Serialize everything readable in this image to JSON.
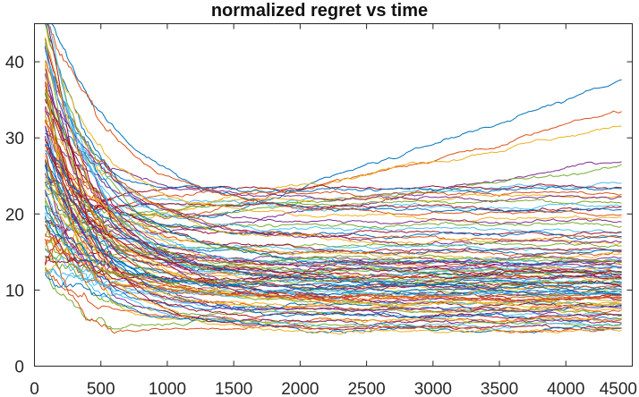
{
  "chart_data": {
    "type": "line",
    "title": "normalized regret vs time",
    "xlabel": "",
    "ylabel": "",
    "xlim": [
      0,
      4500
    ],
    "ylim": [
      0,
      45
    ],
    "x_ticks": [
      0,
      500,
      1000,
      1500,
      2000,
      2500,
      3000,
      3500,
      4000,
      4500
    ],
    "y_ticks": [
      0,
      10,
      20,
      30,
      40
    ],
    "grid": false,
    "legend": "none",
    "x_range_data": [
      80,
      4420
    ],
    "series_count": 100,
    "series_final_values": [
      37.6,
      33.3,
      31.6,
      27.2,
      26.0,
      24.3,
      23.6,
      23.2,
      22.7,
      22.4,
      22.1,
      21.7,
      21.2,
      20.7,
      20.4,
      20.0,
      19.5,
      19.0,
      18.5,
      18.0,
      17.6,
      17.2,
      16.8,
      16.5,
      16.2,
      15.9,
      15.6,
      15.3,
      15.0,
      14.7,
      14.4,
      14.2,
      14.0,
      13.8,
      13.6,
      13.4,
      13.2,
      13.0,
      12.8,
      12.6,
      12.4,
      12.2,
      12.0,
      11.8,
      11.6,
      11.4,
      11.2,
      11.0,
      10.8,
      10.6,
      10.4,
      10.2,
      10.0,
      9.8,
      9.6,
      9.4,
      9.2,
      9.0,
      8.8,
      8.6,
      8.4,
      8.2,
      8.0,
      7.8,
      7.6,
      7.4,
      7.2,
      7.0,
      6.8,
      6.6,
      6.4,
      6.2,
      6.0,
      5.8,
      5.6,
      5.4,
      5.2,
      5.0,
      4.8,
      4.6,
      13.1,
      12.3,
      11.5,
      10.7,
      9.9,
      9.1,
      8.3,
      7.5,
      14.1,
      12.9,
      11.7,
      10.5,
      9.3,
      8.1,
      13.5,
      11.1,
      9.7,
      12.5,
      10.9,
      8.9
    ],
    "colors": [
      "#0072BD",
      "#D95319",
      "#EDB120",
      "#7E2F8E",
      "#77AC30",
      "#4DBEEE",
      "#A2142F"
    ]
  }
}
